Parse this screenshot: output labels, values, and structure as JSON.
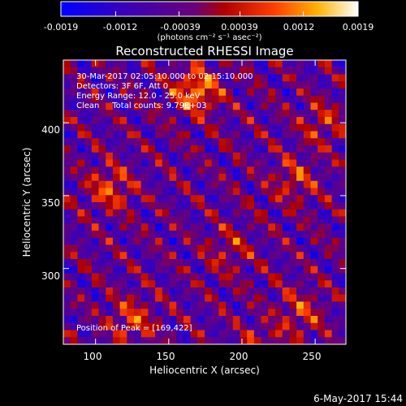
{
  "colorbar": {
    "tick_labels": [
      "-0.0019",
      "-0.0012",
      "-0.00039",
      "0.00039",
      "0.0012",
      "0.0019"
    ],
    "range": [
      -0.0019,
      0.0019
    ],
    "units_label": "(photons cm⁻² s⁻¹ asec⁻²)"
  },
  "chart_data": {
    "type": "heatmap",
    "title": "Reconstructed RHESSI Image",
    "xlabel": "Heliocentric X (arcsec)",
    "ylabel": "Heliocentric Y (arcsec)",
    "xlim": [
      78,
      271
    ],
    "ylim": [
      248,
      443
    ],
    "x_ticks": [
      "100",
      "150",
      "200",
      "250"
    ],
    "y_ticks": [
      "300",
      "350",
      "400"
    ],
    "x_tick_values": [
      100,
      150,
      200,
      250
    ],
    "y_tick_values": [
      300,
      350,
      400
    ],
    "grid": false,
    "colormap": "blue-purple-red-yellow-white",
    "annotations": [
      "30-Mar-2017 02:05:10.000 to 02:15:10.000",
      "Detectors: 3F 6F, Att 0",
      "Energy Range: 12.0 - 25.0 keV",
      "Clean     Total counts: 9.79E+03"
    ],
    "peak_label": "Position of Peak = [169,422]",
    "peak": [
      169,
      422
    ]
  },
  "footer": {
    "date": "6-May-2017 15:44"
  }
}
